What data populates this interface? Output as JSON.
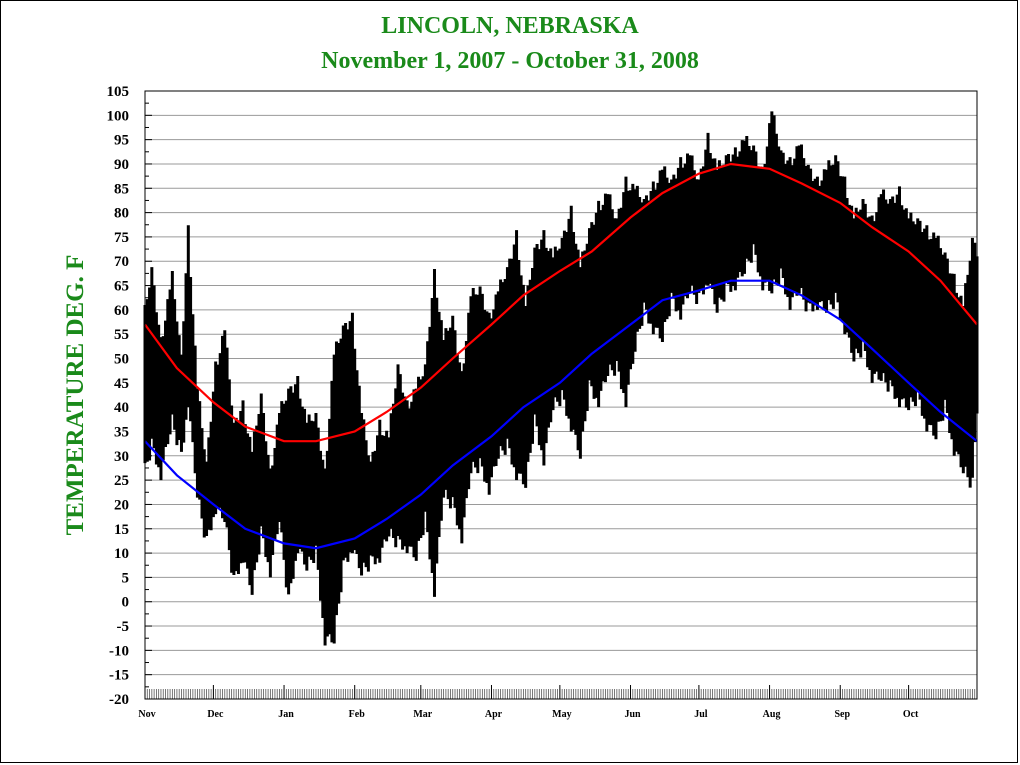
{
  "chart_data": {
    "type": "line",
    "title": "LINCOLN, NEBRASKA",
    "subtitle": "November 1, 2007 - October 31,  2008",
    "ylabel": "TEMPERATURE DEG. F",
    "xlabel": "",
    "ylim": [
      -20,
      105
    ],
    "ytick_step": 5,
    "xlim": [
      "2007-11-01",
      "2008-10-31"
    ],
    "month_labels": [
      "Nov",
      "Dec",
      "Jan",
      "Feb",
      "Mar",
      "Apr",
      "May",
      "Jun",
      "Jul",
      "Aug",
      "Sep",
      "Oct"
    ],
    "month_starts": [
      "2007-11-01",
      "2007-12-01",
      "2008-01-01",
      "2008-02-01",
      "2008-03-01",
      "2008-04-01",
      "2008-05-01",
      "2008-06-01",
      "2008-07-01",
      "2008-08-01",
      "2008-09-01",
      "2008-10-01"
    ],
    "grid": true,
    "colors": {
      "observed": "#000000",
      "normal_high": "#ff0000",
      "normal_low": "#0000ff",
      "title": "#1a8a1a"
    },
    "series": [
      {
        "key": "normal_high",
        "color": "#ff0000",
        "x": [
          "2007-11-01",
          "2007-11-15",
          "2007-12-01",
          "2007-12-15",
          "2008-01-01",
          "2008-01-15",
          "2008-02-01",
          "2008-02-15",
          "2008-03-01",
          "2008-03-15",
          "2008-04-01",
          "2008-04-15",
          "2008-05-01",
          "2008-05-15",
          "2008-06-01",
          "2008-06-15",
          "2008-07-01",
          "2008-07-15",
          "2008-08-01",
          "2008-08-15",
          "2008-09-01",
          "2008-09-15",
          "2008-10-01",
          "2008-10-15",
          "2008-10-31"
        ],
        "values": [
          57,
          48,
          41,
          36,
          33,
          33,
          35,
          39,
          44,
          50,
          57,
          63,
          68,
          72,
          79,
          84,
          88,
          90,
          89,
          86,
          82,
          77,
          72,
          66,
          57
        ]
      },
      {
        "key": "normal_low",
        "color": "#0000ff",
        "x": [
          "2007-11-01",
          "2007-11-15",
          "2007-12-01",
          "2007-12-15",
          "2008-01-01",
          "2008-01-15",
          "2008-02-01",
          "2008-02-15",
          "2008-03-01",
          "2008-03-15",
          "2008-04-01",
          "2008-04-15",
          "2008-05-01",
          "2008-05-15",
          "2008-06-01",
          "2008-06-15",
          "2008-07-01",
          "2008-07-15",
          "2008-08-01",
          "2008-08-15",
          "2008-09-01",
          "2008-09-15",
          "2008-10-01",
          "2008-10-15",
          "2008-10-31"
        ],
        "values": [
          33,
          26,
          20,
          15,
          12,
          11,
          13,
          17,
          22,
          28,
          34,
          40,
          45,
          51,
          57,
          62,
          64,
          66,
          66,
          63,
          58,
          52,
          45,
          39,
          33
        ]
      },
      {
        "key": "observed_high",
        "color": "#000000",
        "x": [
          "2007-11-01",
          "2007-11-04",
          "2007-11-08",
          "2007-11-13",
          "2007-11-17",
          "2007-11-20",
          "2007-11-24",
          "2007-11-28",
          "2007-12-02",
          "2007-12-06",
          "2007-12-10",
          "2007-12-14",
          "2007-12-18",
          "2007-12-22",
          "2007-12-26",
          "2007-12-30",
          "2008-01-03",
          "2008-01-07",
          "2008-01-11",
          "2008-01-15",
          "2008-01-19",
          "2008-01-23",
          "2008-01-27",
          "2008-01-31",
          "2008-02-04",
          "2008-02-08",
          "2008-02-12",
          "2008-02-16",
          "2008-02-20",
          "2008-02-24",
          "2008-02-28",
          "2008-03-03",
          "2008-03-07",
          "2008-03-11",
          "2008-03-15",
          "2008-03-19",
          "2008-03-23",
          "2008-03-27",
          "2008-03-31",
          "2008-04-04",
          "2008-04-08",
          "2008-04-12",
          "2008-04-16",
          "2008-04-20",
          "2008-04-24",
          "2008-04-28",
          "2008-05-02",
          "2008-05-06",
          "2008-05-10",
          "2008-05-14",
          "2008-05-18",
          "2008-05-22",
          "2008-05-26",
          "2008-05-30",
          "2008-06-03",
          "2008-06-07",
          "2008-06-11",
          "2008-06-15",
          "2008-06-19",
          "2008-06-23",
          "2008-06-27",
          "2008-07-01",
          "2008-07-05",
          "2008-07-09",
          "2008-07-13",
          "2008-07-17",
          "2008-07-21",
          "2008-07-25",
          "2008-07-29",
          "2008-08-02",
          "2008-08-06",
          "2008-08-10",
          "2008-08-14",
          "2008-08-18",
          "2008-08-22",
          "2008-08-26",
          "2008-08-30",
          "2008-09-03",
          "2008-09-07",
          "2008-09-11",
          "2008-09-15",
          "2008-09-19",
          "2008-09-23",
          "2008-09-27",
          "2008-10-01",
          "2008-10-05",
          "2008-10-09",
          "2008-10-13",
          "2008-10-17",
          "2008-10-21",
          "2008-10-25",
          "2008-10-29",
          "2008-10-31"
        ],
        "values": [
          61,
          70,
          55,
          68,
          52,
          78,
          45,
          30,
          50,
          57,
          38,
          42,
          32,
          44,
          28,
          40,
          45,
          47,
          38,
          40,
          28,
          52,
          58,
          60,
          40,
          30,
          38,
          35,
          50,
          42,
          45,
          50,
          69,
          55,
          60,
          48,
          64,
          66,
          60,
          65,
          70,
          77,
          62,
          74,
          77,
          72,
          76,
          82,
          70,
          78,
          83,
          85,
          80,
          88,
          86,
          84,
          87,
          90,
          88,
          92,
          93,
          88,
          97,
          90,
          93,
          94,
          96,
          95,
          90,
          102,
          94,
          92,
          95,
          91,
          88,
          90,
          93,
          88,
          80,
          84,
          80,
          85,
          84,
          86,
          80,
          80,
          78,
          76,
          73,
          68,
          62,
          76,
          74
        ]
      },
      {
        "key": "observed_low",
        "color": "#000000",
        "x": [
          "2007-11-01",
          "2007-11-04",
          "2007-11-08",
          "2007-11-13",
          "2007-11-17",
          "2007-11-20",
          "2007-11-24",
          "2007-11-28",
          "2007-12-02",
          "2007-12-06",
          "2007-12-10",
          "2007-12-14",
          "2007-12-18",
          "2007-12-22",
          "2007-12-26",
          "2007-12-30",
          "2008-01-03",
          "2008-01-07",
          "2008-01-11",
          "2008-01-15",
          "2008-01-19",
          "2008-01-23",
          "2008-01-27",
          "2008-01-31",
          "2008-02-04",
          "2008-02-08",
          "2008-02-12",
          "2008-02-16",
          "2008-02-20",
          "2008-02-24",
          "2008-02-28",
          "2008-03-03",
          "2008-03-07",
          "2008-03-11",
          "2008-03-15",
          "2008-03-19",
          "2008-03-23",
          "2008-03-27",
          "2008-03-31",
          "2008-04-04",
          "2008-04-08",
          "2008-04-12",
          "2008-04-16",
          "2008-04-20",
          "2008-04-24",
          "2008-04-28",
          "2008-05-02",
          "2008-05-06",
          "2008-05-10",
          "2008-05-14",
          "2008-05-18",
          "2008-05-22",
          "2008-05-26",
          "2008-05-30",
          "2008-06-03",
          "2008-06-07",
          "2008-06-11",
          "2008-06-15",
          "2008-06-19",
          "2008-06-23",
          "2008-06-27",
          "2008-07-01",
          "2008-07-05",
          "2008-07-09",
          "2008-07-13",
          "2008-07-17",
          "2008-07-21",
          "2008-07-25",
          "2008-07-29",
          "2008-08-02",
          "2008-08-06",
          "2008-08-10",
          "2008-08-14",
          "2008-08-18",
          "2008-08-22",
          "2008-08-26",
          "2008-08-30",
          "2008-09-03",
          "2008-09-07",
          "2008-09-11",
          "2008-09-15",
          "2008-09-19",
          "2008-09-23",
          "2008-09-27",
          "2008-10-01",
          "2008-10-05",
          "2008-10-09",
          "2008-10-13",
          "2008-10-17",
          "2008-10-21",
          "2008-10-25",
          "2008-10-29",
          "2008-10-31"
        ],
        "values": [
          25,
          30,
          25,
          35,
          28,
          40,
          20,
          10,
          18,
          15,
          2,
          8,
          0,
          12,
          5,
          15,
          -2,
          10,
          5,
          8,
          -9,
          -10,
          5,
          10,
          4,
          6,
          8,
          12,
          10,
          10,
          7,
          15,
          1,
          20,
          18,
          12,
          25,
          26,
          22,
          28,
          30,
          25,
          22,
          35,
          28,
          38,
          40,
          35,
          28,
          42,
          40,
          45,
          46,
          40,
          50,
          58,
          55,
          52,
          60,
          58,
          62,
          60,
          65,
          58,
          62,
          64,
          66,
          70,
          64,
          62,
          65,
          60,
          62,
          58,
          60,
          58,
          60,
          55,
          48,
          50,
          45,
          44,
          42,
          40,
          38,
          40,
          35,
          32,
          38,
          30,
          25,
          22,
          38
        ]
      }
    ]
  }
}
